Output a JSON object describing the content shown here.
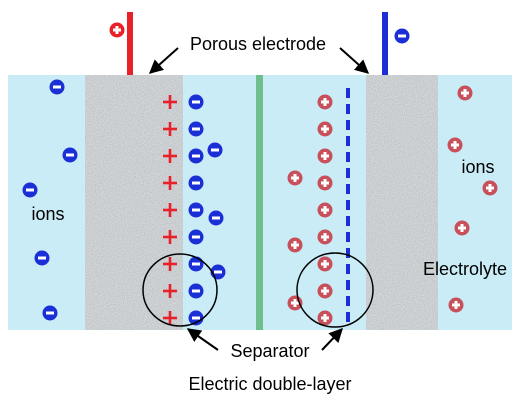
{
  "labels": {
    "electrode": "Porous electrode",
    "ions_left": "ions",
    "ions_right": "ions",
    "electrolyte": "Electrolyte",
    "separator": "Separator",
    "double_layer": "Electric double-layer"
  }
}
